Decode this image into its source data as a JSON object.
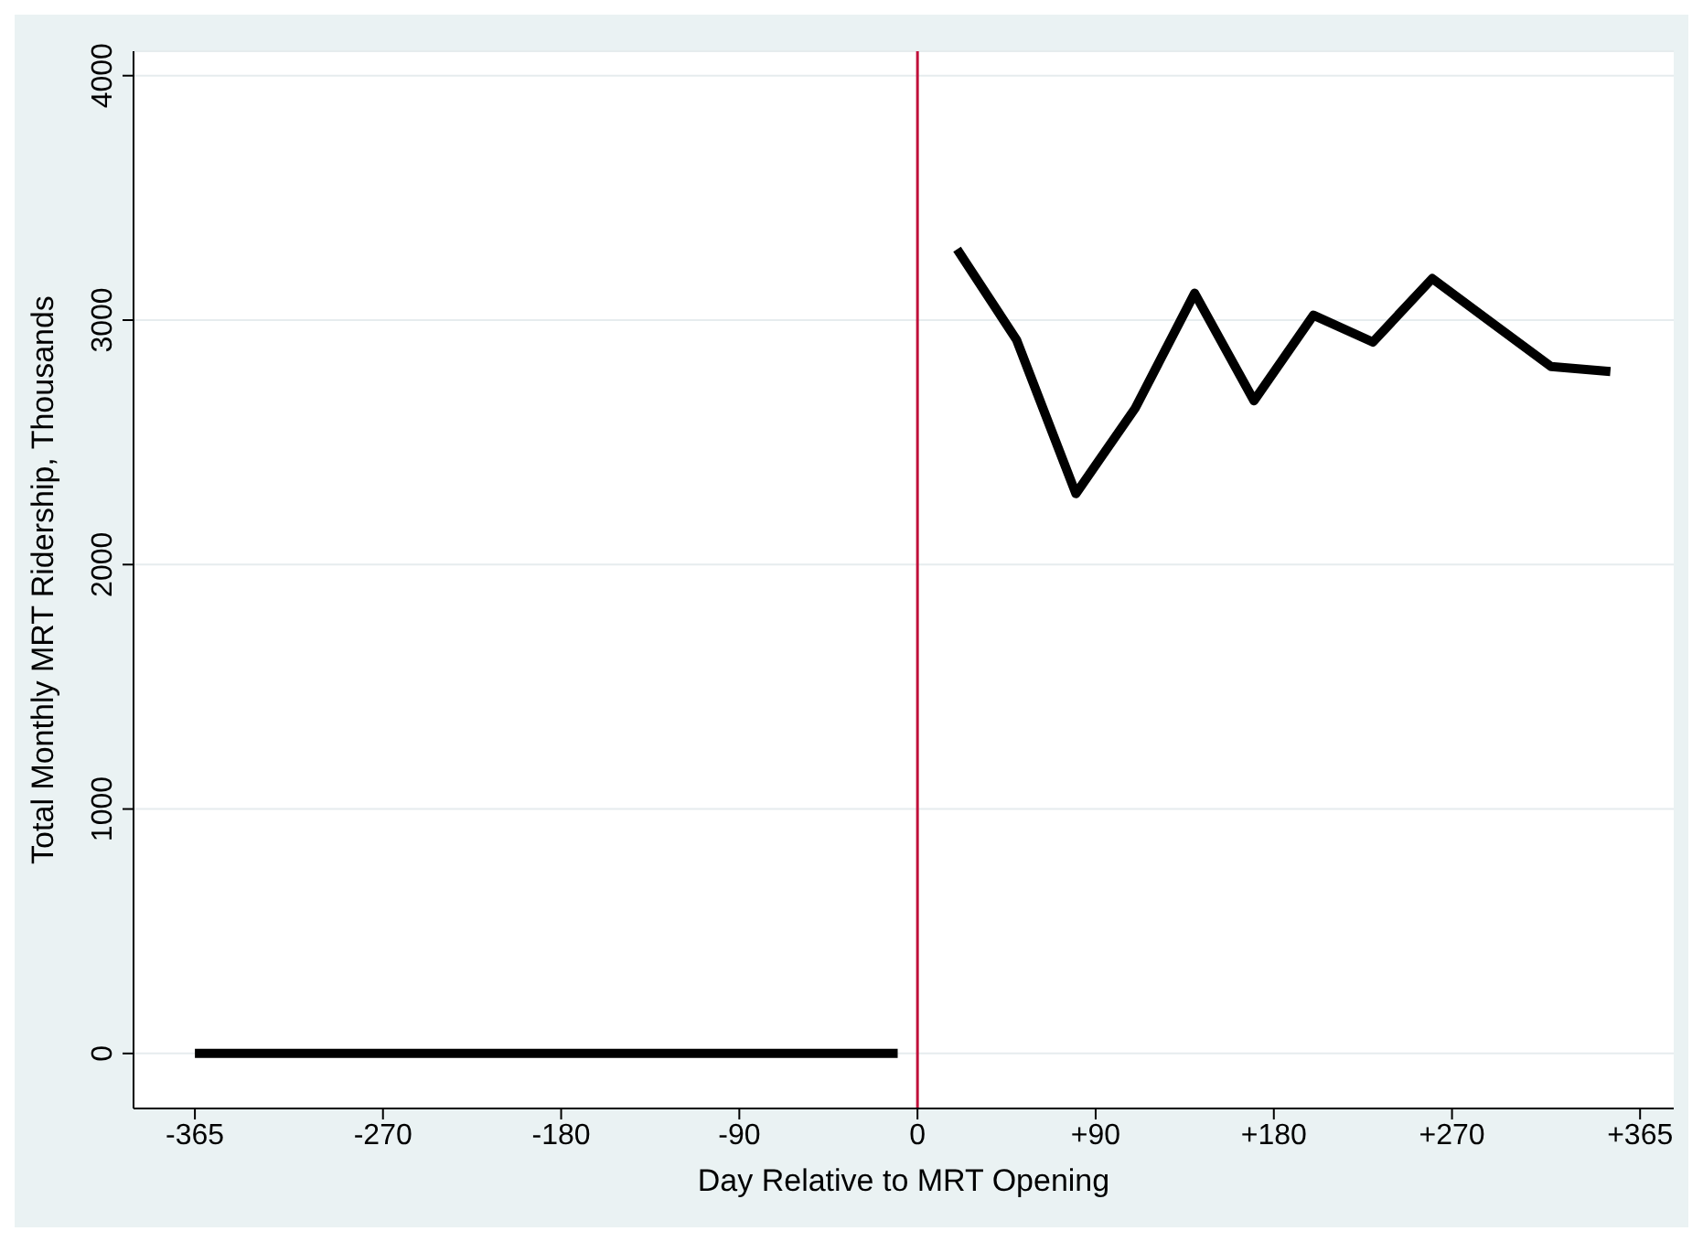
{
  "chart_data": {
    "type": "line",
    "xlabel": "Day Relative to MRT Opening",
    "ylabel": "Total Monthly MRT Ridership, Thousands",
    "series": [
      {
        "color": "#000000",
        "x": [
          -365,
          -10
        ],
        "values": [
          0,
          0
        ]
      },
      {
        "color": "#000000",
        "x": [
          20,
          50,
          80,
          110,
          140,
          170,
          200,
          230,
          260,
          290,
          320,
          350
        ],
        "values": [
          3290,
          2920,
          2290,
          2640,
          3110,
          2670,
          3020,
          2910,
          3170,
          2990,
          2810,
          2790
        ]
      }
    ],
    "xlim": [
      -396,
      382
    ],
    "xticks": [
      -365,
      -270,
      -180,
      -90,
      0,
      {
        "value": 90,
        "label": "+90"
      },
      {
        "value": 180,
        "label": "+180"
      },
      {
        "value": 270,
        "label": "+270"
      },
      {
        "value": 365,
        "label": "+365"
      }
    ],
    "ylim": [
      -225,
      4100
    ],
    "yticks": [
      0,
      1000,
      2000,
      3000,
      4000
    ],
    "grid": "y",
    "marker": "none",
    "line_style": "solid",
    "ref_lines": [
      {
        "axis": "x",
        "value": 0,
        "color": "#c0103a"
      }
    ]
  }
}
